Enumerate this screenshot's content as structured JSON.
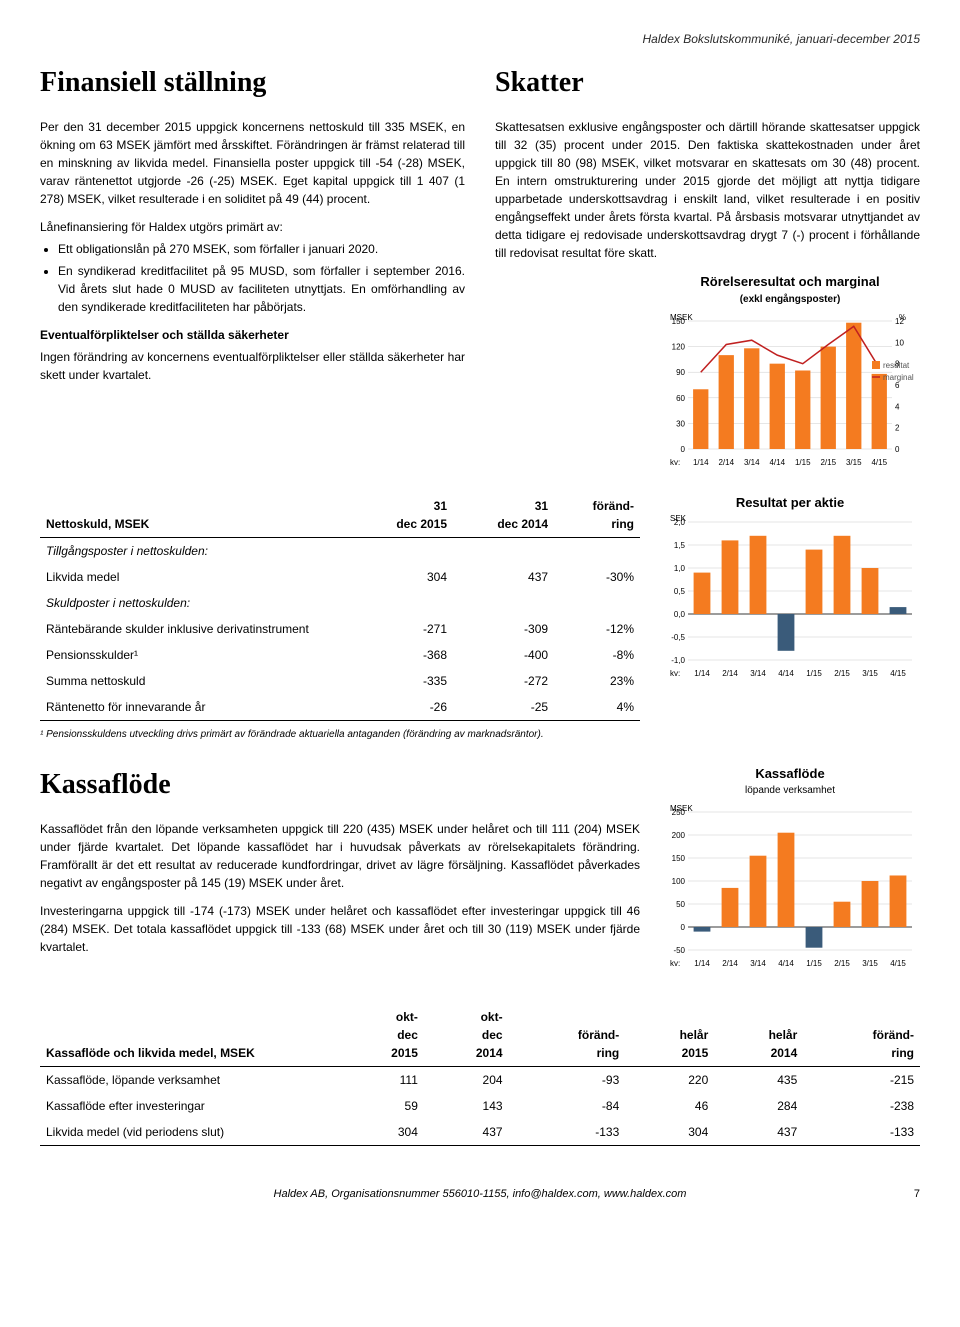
{
  "header": {
    "right": "Haldex Bokslutskommuniké, januari-december 2015"
  },
  "financial": {
    "title": "Finansiell ställning",
    "p1": "Per den 31 december 2015 uppgick koncernens nettoskuld till 335 MSEK, en ökning om 63 MSEK jämfört med årsskiftet. Förändringen är främst relaterad till en minskning av likvida medel. Finansiella poster uppgick till -54 (-28) MSEK, varav räntenettot utgjorde -26 (-25) MSEK. Eget kapital uppgick till 1 407 (1 278) MSEK, vilket resulterade i en soliditet på 49 (44) procent.",
    "loan_intro": "Lånefinansiering för Haldex utgörs primärt av:",
    "bullet1": "Ett obligationslån på 270 MSEK, som förfaller i januari 2020.",
    "bullet2": "En syndikerad kreditfacilitet på 95 MUSD, som förfaller i september 2016. Vid årets slut hade 0 MUSD av faciliteten utnyttjats. En omförhandling av den syndikerade kreditfaciliteten har påbörjats.",
    "contingent_title": "Eventualförpliktelser och ställda säkerheter",
    "contingent_body": "Ingen förändring av koncernens eventualförpliktelser eller ställda säkerheter har skett under kvartalet."
  },
  "taxes": {
    "title": "Skatter",
    "body": "Skattesatsen exklusive engångsposter och därtill hörande skattesatser uppgick till 32 (35) procent under 2015. Den faktiska skattekostnaden under året uppgick till 80 (98) MSEK, vilket motsvarar en skattesats om 30 (48) procent. En intern omstrukturering under 2015 gjorde det möjligt att nyttja tidigare upparbetade underskottsavdrag i enskilt land, vilket resulterade i en positiv engångseffekt under årets första kvartal. På årsbasis motsvarar utnyttjandet av detta tidigare ej redovisade underskottsavdrag drygt 7 (-) procent i förhållande till redovisat resultat före skatt."
  },
  "chart1": {
    "title": "Rörelseresultat och marginal",
    "subtitle": "(exkl engångsposter)",
    "y_left_label": "MSEK",
    "y_right_label": "%",
    "y_left_ticks": [
      0,
      30,
      60,
      90,
      120,
      150
    ],
    "y_right_ticks": [
      0,
      2,
      4,
      6,
      8,
      10,
      12
    ],
    "x_labels": [
      "1/14",
      "2/14",
      "3/14",
      "4/14",
      "1/15",
      "2/15",
      "3/15",
      "4/15"
    ],
    "x_prefix": "kv:",
    "bars": [
      70,
      110,
      118,
      100,
      92,
      120,
      148,
      88
    ],
    "bar_color": "#f47b20",
    "line": [
      7.2,
      9.8,
      10.2,
      8.8,
      8.0,
      9.8,
      11.5,
      7.6
    ],
    "line_color": "#c02020",
    "grid_color": "#cccccc",
    "legend": {
      "bar": "resultat",
      "line": "marginal"
    }
  },
  "chart2": {
    "title": "Resultat per aktie",
    "y_label": "SEK",
    "y_ticks": [
      -1.0,
      -0.5,
      0.0,
      0.5,
      1.0,
      1.5,
      2.0
    ],
    "x_labels": [
      "1/14",
      "2/14",
      "3/14",
      "4/14",
      "1/15",
      "2/15",
      "3/15",
      "4/15"
    ],
    "x_prefix": "kv:",
    "bars": [
      0.9,
      1.6,
      1.7,
      -0.8,
      1.4,
      1.7,
      1.0,
      0.15
    ],
    "color_pos": "#f47b20",
    "color_spec": "#3a5b7a",
    "special_idx": [
      3,
      7
    ],
    "grid_color": "#cccccc"
  },
  "chart3": {
    "title": "Kassaflöde",
    "subtitle": "löpande verksamhet",
    "y_label": "MSEK",
    "y_ticks": [
      -50,
      0,
      50,
      100,
      150,
      200,
      250
    ],
    "x_labels": [
      "1/14",
      "2/14",
      "3/14",
      "4/14",
      "1/15",
      "2/15",
      "3/15",
      "4/15"
    ],
    "x_prefix": "kv:",
    "bars": [
      -10,
      85,
      155,
      205,
      -45,
      55,
      100,
      112
    ],
    "color_pos": "#f47b20",
    "color_spec": "#3a5b7a",
    "special_idx": [
      0,
      4
    ],
    "grid_color": "#cccccc"
  },
  "netdebt_table": {
    "title": "Nettoskuld, MSEK",
    "headers": [
      "31 dec 2015",
      "31 dec 2014",
      "föränd-ring"
    ],
    "section1": "Tillgångsposter i nettoskulden:",
    "r1": {
      "label": "Likvida medel",
      "v": [
        "304",
        "437",
        "-30%"
      ]
    },
    "section2": "Skuldposter i nettoskulden:",
    "r2": {
      "label": "Räntebärande skulder inklusive derivatinstrument",
      "v": [
        "-271",
        "-309",
        "-12%"
      ]
    },
    "r3": {
      "label": "Pensionsskulder¹",
      "v": [
        "-368",
        "-400",
        "-8%"
      ]
    },
    "r4": {
      "label": "Summa nettoskuld",
      "v": [
        "-335",
        "-272",
        "23%"
      ]
    },
    "r5": {
      "label": "Räntenetto för innevarande år",
      "v": [
        "-26",
        "-25",
        "4%"
      ]
    },
    "footnote": "¹ Pensionsskuldens utveckling drivs primärt av förändrade aktuariella antaganden (förändring av marknadsräntor)."
  },
  "cashflow": {
    "title": "Kassaflöde",
    "p1": "Kassaflödet från den löpande verksamheten uppgick till 220 (435) MSEK under helåret och till 111 (204) MSEK under fjärde kvartalet. Det löpande kassaflödet har i huvudsak påverkats av rörelsekapitalets förändring. Framförallt är det ett resultat av reducerade kundfordringar, drivet av lägre försäljning. Kassaflödet påverkades negativt av engångsposter på 145 (19) MSEK under året.",
    "p2": "Investeringarna uppgick till -174 (-173) MSEK under helåret och kassaflödet efter investeringar uppgick till 46 (284) MSEK. Det totala kassaflödet uppgick till -133 (68) MSEK under året och till 30 (119) MSEK under fjärde kvartalet."
  },
  "cash_table": {
    "title": "Kassaflöde och likvida medel, MSEK",
    "headers": [
      "okt-dec 2015",
      "okt-dec 2014",
      "föränd-ring",
      "helår 2015",
      "helår 2014",
      "föränd-ring"
    ],
    "r1": {
      "label": "Kassaflöde, löpande verksamhet",
      "v": [
        "111",
        "204",
        "-93",
        "220",
        "435",
        "-215"
      ]
    },
    "r2": {
      "label": "Kassaflöde efter investeringar",
      "v": [
        "59",
        "143",
        "-84",
        "46",
        "284",
        "-238"
      ]
    },
    "r3": {
      "label": "Likvida medel (vid periodens slut)",
      "v": [
        "304",
        "437",
        "-133",
        "304",
        "437",
        "-133"
      ]
    }
  },
  "footer": {
    "text": "Haldex AB, Organisationsnummer 556010-1155, info@haldex.com, www.haldex.com",
    "page": "7"
  }
}
